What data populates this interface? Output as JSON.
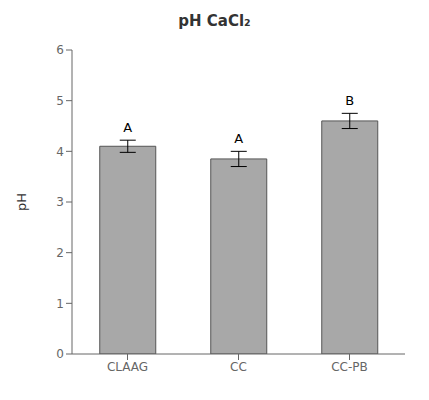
{
  "chart_data": {
    "type": "bar",
    "title": "pH CaCl₂",
    "ylabel": "pH",
    "categories": [
      "CLAAG",
      "CC",
      "CC-PB"
    ],
    "values": [
      4.1,
      3.85,
      4.6
    ],
    "errors": [
      0.12,
      0.15,
      0.15
    ],
    "annotations": [
      "A",
      "A",
      "B"
    ],
    "color": "#a8a8a8",
    "ylim": [
      0,
      6
    ],
    "yticks": [
      0,
      1,
      2,
      3,
      4,
      5,
      6
    ],
    "grid": false
  }
}
